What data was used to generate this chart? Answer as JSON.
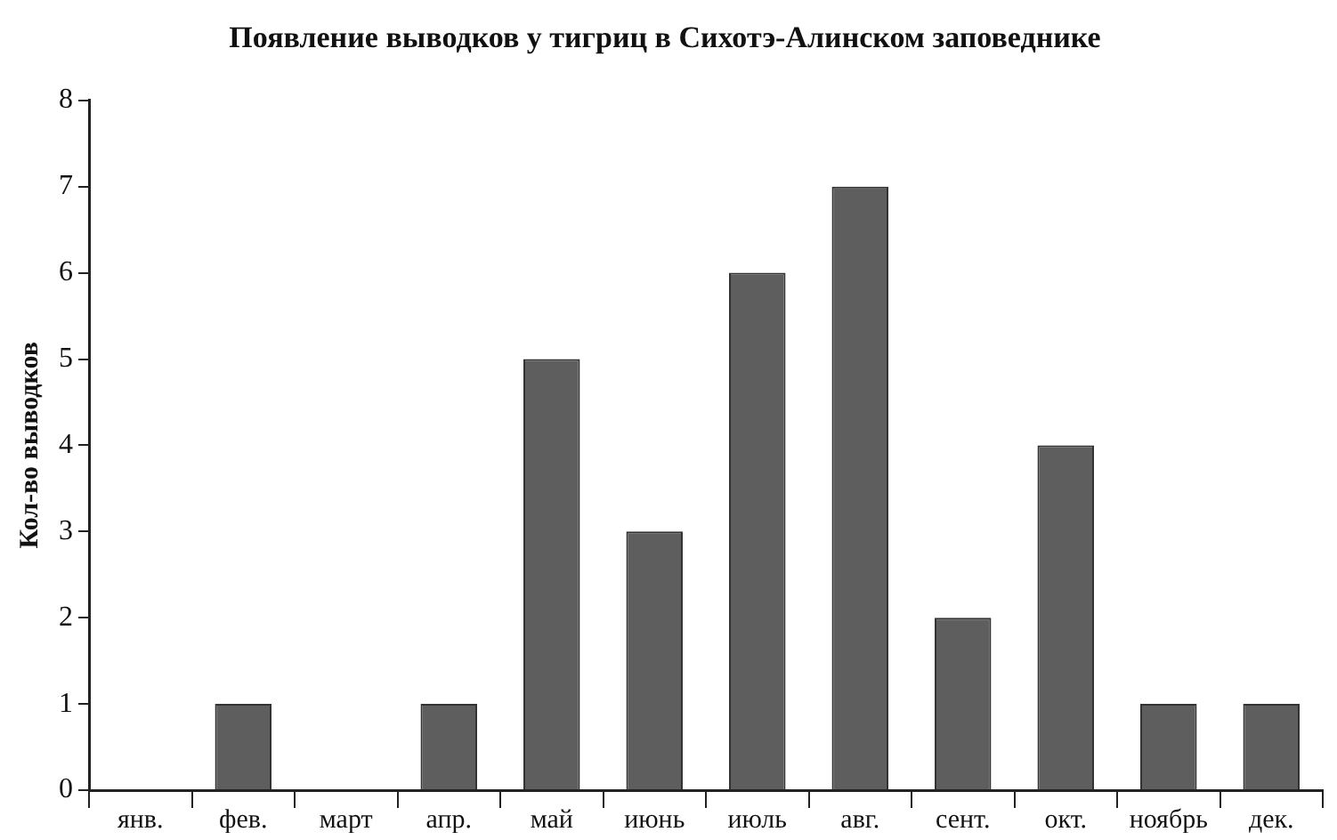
{
  "chart_data": {
    "type": "bar",
    "title": "Появление выводков у тигриц в Сихотэ-Алинском заповеднике",
    "ylabel": "Кол-во выводков",
    "categories": [
      "янв.",
      "фев.",
      "март",
      "апр.",
      "май",
      "июнь",
      "июль",
      "авг.",
      "сент.",
      "окт.",
      "ноябрь",
      "дек."
    ],
    "values": [
      0,
      1,
      0,
      1,
      5,
      3,
      6,
      7,
      2,
      4,
      1,
      1
    ],
    "color": "#5e5e5e",
    "ylim": [
      0,
      8
    ],
    "yticks": [
      0,
      1,
      2,
      3,
      4,
      5,
      6,
      7,
      8
    ],
    "grid": false,
    "legend": false
  }
}
